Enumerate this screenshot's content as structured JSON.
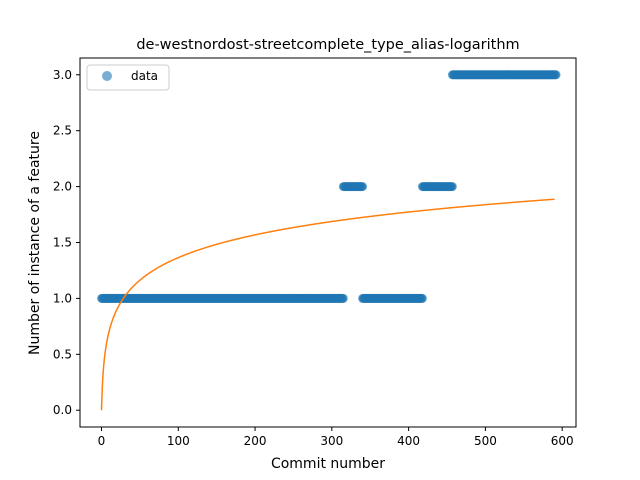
{
  "chart_data": {
    "type": "scatter",
    "title": "de-westnordost-streetcomplete_type_alias-logarithm",
    "xlabel": "Commit number",
    "ylabel": "Number of instance of a feature",
    "xlim": [
      -28,
      618
    ],
    "ylim": [
      -0.15,
      3.15
    ],
    "xticks": [
      0,
      100,
      200,
      300,
      400,
      500,
      600
    ],
    "yticks": [
      0.0,
      0.5,
      1.0,
      1.5,
      2.0,
      2.5,
      3.0
    ],
    "xtick_labels": [
      "0",
      "100",
      "200",
      "300",
      "400",
      "500",
      "600"
    ],
    "ytick_labels": [
      "0.0",
      "0.5",
      "1.0",
      "1.5",
      "2.0",
      "2.5",
      "3.0"
    ],
    "grid": false,
    "legend": {
      "position": "top-left",
      "entries": [
        "data"
      ]
    },
    "series": [
      {
        "name": "data",
        "kind": "scatter",
        "color": "#1f77b4",
        "segments": [
          {
            "x_start": 0,
            "x_end": 315,
            "y": 1.0
          },
          {
            "x_start": 315,
            "x_end": 340,
            "y": 2.0
          },
          {
            "x_start": 340,
            "x_end": 418,
            "y": 1.0
          },
          {
            "x_start": 418,
            "x_end": 457,
            "y": 2.0
          },
          {
            "x_start": 457,
            "x_end": 592,
            "y": 3.0
          }
        ]
      },
      {
        "kind": "line",
        "color": "#ff7f0e",
        "function": "a*ln(x+1)",
        "a": 0.2957,
        "x_range": [
          0,
          590
        ]
      }
    ]
  }
}
